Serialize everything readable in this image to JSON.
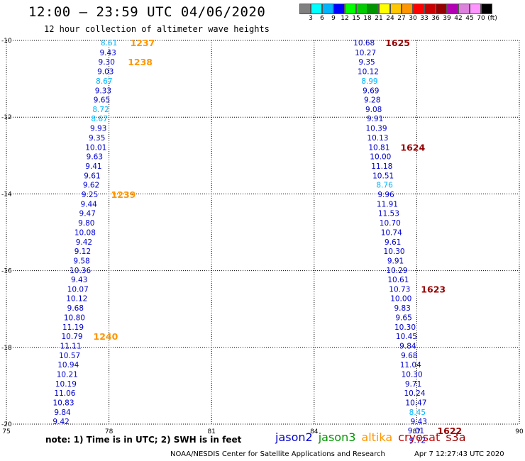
{
  "header": {
    "title": "12:00 — 23:59 UTC 04/06/2020",
    "subtitle": "12 hour collection of altimeter wave heights"
  },
  "colorbar": {
    "colors": [
      "#808080",
      "#00ffff",
      "#00b4ff",
      "#0000ff",
      "#00ff00",
      "#00cc00",
      "#009600",
      "#ffff00",
      "#ffc800",
      "#ff9600",
      "#ff0000",
      "#c80000",
      "#960000",
      "#b400b4",
      "#dc82dc",
      "#ff96ff",
      "#000000"
    ],
    "labels": [
      "3",
      "6",
      "9",
      "12",
      "15",
      "18",
      "21",
      "24",
      "27",
      "30",
      "33",
      "36",
      "39",
      "42",
      "45",
      "70",
      "(ft)"
    ]
  },
  "footer": {
    "note": "note:  1) Time is in UTC;  2) SWH is in feet",
    "missions": [
      {
        "name": "jason2",
        "color": "#0000cc"
      },
      {
        "name": "jason3",
        "color": "#009600"
      },
      {
        "name": "altika",
        "color": "#ff9600"
      },
      {
        "name": "cryosat",
        "color": "#c80000"
      },
      {
        "name": "s3a",
        "color": "#960000"
      }
    ],
    "credit": "NOAA/NESDIS Center for Satellite Applications and Research",
    "timestamp": "Apr  7 12:27:43 UTC 2020"
  },
  "chart_data": {
    "type": "scatter",
    "title": "12 hour collection of altimeter wave heights",
    "xlabel": "",
    "ylabel": "",
    "xlim": [
      75,
      90
    ],
    "ylim": [
      -20,
      -10
    ],
    "xticks": [
      "75",
      "78",
      "81",
      "84",
      "87",
      "90"
    ],
    "yticks": [
      "-10",
      "-12",
      "-14",
      "-16",
      "-18",
      "-20"
    ],
    "grid": true,
    "series": [
      {
        "name": "altika",
        "value_color": "#0000cc",
        "cyan_color": "#00b4ff",
        "time_color": "#ff9600",
        "points": [
          {
            "lon": 78.0,
            "lat": -10.06,
            "swh": "8.61",
            "cyan": true
          },
          {
            "lon": 77.97,
            "lat": -10.31,
            "swh": "9.43"
          },
          {
            "lon": 77.93,
            "lat": -10.55,
            "swh": "9.30"
          },
          {
            "lon": 77.9,
            "lat": -10.8,
            "swh": "9.03"
          },
          {
            "lon": 77.86,
            "lat": -11.05,
            "swh": "8.67",
            "cyan": true
          },
          {
            "lon": 77.83,
            "lat": -11.3,
            "swh": "9.33"
          },
          {
            "lon": 77.79,
            "lat": -11.54,
            "swh": "9.65"
          },
          {
            "lon": 77.76,
            "lat": -11.79,
            "swh": "8.72",
            "cyan": true
          },
          {
            "lon": 77.72,
            "lat": -12.03,
            "swh": "8.67",
            "cyan": true
          },
          {
            "lon": 77.69,
            "lat": -12.28,
            "swh": "9.93"
          },
          {
            "lon": 77.65,
            "lat": -12.53,
            "swh": "9.35"
          },
          {
            "lon": 77.62,
            "lat": -12.78,
            "swh": "10.01"
          },
          {
            "lon": 77.58,
            "lat": -13.02,
            "swh": "9.63"
          },
          {
            "lon": 77.55,
            "lat": -13.27,
            "swh": "9.41"
          },
          {
            "lon": 77.51,
            "lat": -13.52,
            "swh": "9.61"
          },
          {
            "lon": 77.48,
            "lat": -13.76,
            "swh": "9.62"
          },
          {
            "lon": 77.44,
            "lat": -14.01,
            "swh": "9.25"
          },
          {
            "lon": 77.41,
            "lat": -14.26,
            "swh": "9.44"
          },
          {
            "lon": 77.37,
            "lat": -14.5,
            "swh": "9.47"
          },
          {
            "lon": 77.34,
            "lat": -14.75,
            "swh": "9.80"
          },
          {
            "lon": 77.3,
            "lat": -15.0,
            "swh": "10.08"
          },
          {
            "lon": 77.27,
            "lat": -15.25,
            "swh": "9.42"
          },
          {
            "lon": 77.23,
            "lat": -15.49,
            "swh": "9.12"
          },
          {
            "lon": 77.2,
            "lat": -15.74,
            "swh": "9.58"
          },
          {
            "lon": 77.16,
            "lat": -15.99,
            "swh": "10.36"
          },
          {
            "lon": 77.13,
            "lat": -16.23,
            "swh": "9.43"
          },
          {
            "lon": 77.09,
            "lat": -16.48,
            "swh": "10.07"
          },
          {
            "lon": 77.06,
            "lat": -16.72,
            "swh": "10.12"
          },
          {
            "lon": 77.02,
            "lat": -16.97,
            "swh": "9.68"
          },
          {
            "lon": 76.99,
            "lat": -17.22,
            "swh": "10.80"
          },
          {
            "lon": 76.95,
            "lat": -17.47,
            "swh": "11.19"
          },
          {
            "lon": 76.92,
            "lat": -17.71,
            "swh": "10.79"
          },
          {
            "lon": 76.88,
            "lat": -17.96,
            "swh": "11.11"
          },
          {
            "lon": 76.85,
            "lat": -18.21,
            "swh": "10.57"
          },
          {
            "lon": 76.81,
            "lat": -18.45,
            "swh": "10.94"
          },
          {
            "lon": 76.78,
            "lat": -18.7,
            "swh": "10.21"
          },
          {
            "lon": 76.74,
            "lat": -18.95,
            "swh": "10.19"
          },
          {
            "lon": 76.71,
            "lat": -19.19,
            "swh": "11.06"
          },
          {
            "lon": 76.67,
            "lat": -19.44,
            "swh": "10.83"
          },
          {
            "lon": 76.64,
            "lat": -19.69,
            "swh": "9.84"
          },
          {
            "lon": 76.6,
            "lat": -19.93,
            "swh": "9.42"
          }
        ],
        "times": [
          {
            "lon": 78.0,
            "lat": -10.06,
            "label": "1237"
          },
          {
            "lon": 77.93,
            "lat": -10.55,
            "label": "1238"
          },
          {
            "lon": 77.44,
            "lat": -14.01,
            "label": "1239"
          },
          {
            "lon": 76.92,
            "lat": -17.71,
            "label": "1240"
          }
        ]
      },
      {
        "name": "s3a",
        "value_color": "#0000cc",
        "cyan_color": "#00b4ff",
        "time_color": "#960000",
        "points": [
          {
            "lon": 85.46,
            "lat": -10.06,
            "swh": "10.68"
          },
          {
            "lon": 85.5,
            "lat": -10.31,
            "swh": "10.27"
          },
          {
            "lon": 85.54,
            "lat": -10.55,
            "swh": "9.35"
          },
          {
            "lon": 85.58,
            "lat": -10.8,
            "swh": "10.12"
          },
          {
            "lon": 85.62,
            "lat": -11.05,
            "swh": "8.99",
            "cyan": true
          },
          {
            "lon": 85.66,
            "lat": -11.3,
            "swh": "9.69"
          },
          {
            "lon": 85.7,
            "lat": -11.54,
            "swh": "9.28"
          },
          {
            "lon": 85.74,
            "lat": -11.79,
            "swh": "9.08"
          },
          {
            "lon": 85.78,
            "lat": -12.03,
            "swh": "9.91"
          },
          {
            "lon": 85.82,
            "lat": -12.28,
            "swh": "10.39"
          },
          {
            "lon": 85.86,
            "lat": -12.53,
            "swh": "10.13"
          },
          {
            "lon": 85.9,
            "lat": -12.78,
            "swh": "10.81"
          },
          {
            "lon": 85.94,
            "lat": -13.02,
            "swh": "10.00"
          },
          {
            "lon": 85.98,
            "lat": -13.27,
            "swh": "11.18"
          },
          {
            "lon": 86.02,
            "lat": -13.52,
            "swh": "10.51"
          },
          {
            "lon": 86.06,
            "lat": -13.76,
            "swh": "8.76",
            "cyan": true
          },
          {
            "lon": 86.1,
            "lat": -14.01,
            "swh": "9.96"
          },
          {
            "lon": 86.14,
            "lat": -14.26,
            "swh": "11.91"
          },
          {
            "lon": 86.18,
            "lat": -14.5,
            "swh": "11.53"
          },
          {
            "lon": 86.22,
            "lat": -14.75,
            "swh": "10.70"
          },
          {
            "lon": 86.26,
            "lat": -15.0,
            "swh": "10.74"
          },
          {
            "lon": 86.3,
            "lat": -15.25,
            "swh": "9.61"
          },
          {
            "lon": 86.34,
            "lat": -15.49,
            "swh": "10.30"
          },
          {
            "lon": 86.38,
            "lat": -15.74,
            "swh": "9.91"
          },
          {
            "lon": 86.42,
            "lat": -15.99,
            "swh": "10.29"
          },
          {
            "lon": 86.46,
            "lat": -16.23,
            "swh": "10.61"
          },
          {
            "lon": 86.5,
            "lat": -16.48,
            "swh": "10.73"
          },
          {
            "lon": 86.54,
            "lat": -16.72,
            "swh": "10.00"
          },
          {
            "lon": 86.58,
            "lat": -16.97,
            "swh": "9.83"
          },
          {
            "lon": 86.62,
            "lat": -17.22,
            "swh": "9.65"
          },
          {
            "lon": 86.66,
            "lat": -17.47,
            "swh": "10.30"
          },
          {
            "lon": 86.7,
            "lat": -17.71,
            "swh": "10.45"
          },
          {
            "lon": 86.74,
            "lat": -17.96,
            "swh": "9.84"
          },
          {
            "lon": 86.78,
            "lat": -18.21,
            "swh": "9.68"
          },
          {
            "lon": 86.82,
            "lat": -18.45,
            "swh": "11.04"
          },
          {
            "lon": 86.86,
            "lat": -18.7,
            "swh": "10.30"
          },
          {
            "lon": 86.9,
            "lat": -18.95,
            "swh": "9.71"
          },
          {
            "lon": 86.94,
            "lat": -19.19,
            "swh": "10.24"
          },
          {
            "lon": 86.98,
            "lat": -19.44,
            "swh": "10.47"
          },
          {
            "lon": 87.02,
            "lat": -19.69,
            "swh": "8.45",
            "cyan": true
          },
          {
            "lon": 87.06,
            "lat": -19.93,
            "swh": "9.43"
          },
          {
            "lon": 86.98,
            "lat": -20.17,
            "swh": "9.01"
          },
          {
            "lon": 87.02,
            "lat": -20.42,
            "swh": "9.72"
          }
        ],
        "times": [
          {
            "lon": 85.46,
            "lat": -10.06,
            "label": "1625"
          },
          {
            "lon": 85.9,
            "lat": -12.78,
            "label": "1624"
          },
          {
            "lon": 86.5,
            "lat": -16.48,
            "label": "1623"
          },
          {
            "lon": 86.98,
            "lat": -20.17,
            "label": "1622"
          }
        ]
      }
    ]
  }
}
